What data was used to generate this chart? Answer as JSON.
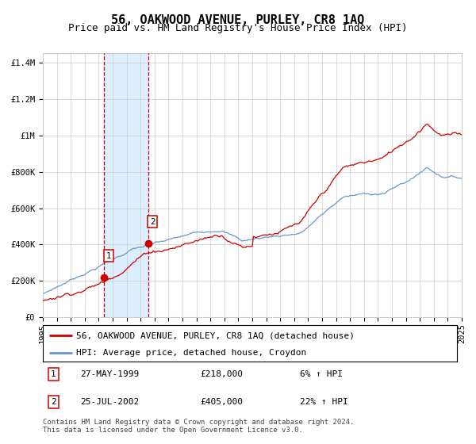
{
  "title": "56, OAKWOOD AVENUE, PURLEY, CR8 1AQ",
  "subtitle": "Price paid vs. HM Land Registry's House Price Index (HPI)",
  "ylim": [
    0,
    1450000
  ],
  "yticks": [
    0,
    200000,
    400000,
    600000,
    800000,
    1000000,
    1200000,
    1400000
  ],
  "ytick_labels": [
    "£0",
    "£200K",
    "£400K",
    "£600K",
    "£800K",
    "£1M",
    "£1.2M",
    "£1.4M"
  ],
  "x_start_year": 1995,
  "x_end_year": 2025,
  "xtick_years": [
    1995,
    1996,
    1997,
    1998,
    1999,
    2000,
    2001,
    2002,
    2003,
    2004,
    2005,
    2006,
    2007,
    2008,
    2009,
    2010,
    2011,
    2012,
    2013,
    2014,
    2015,
    2016,
    2017,
    2018,
    2019,
    2020,
    2021,
    2022,
    2023,
    2024,
    2025
  ],
  "sale1_year": 1999.4,
  "sale1_price": 218000,
  "sale1_label": "1",
  "sale1_date": "27-MAY-1999",
  "sale1_hpi": "6% ↑ HPI",
  "sale2_year": 2002.55,
  "sale2_price": 405000,
  "sale2_label": "2",
  "sale2_date": "25-JUL-2002",
  "sale2_hpi": "22% ↑ HPI",
  "red_line_color": "#cc0000",
  "blue_line_color": "#6699cc",
  "shade_color": "#ddeeff",
  "dashed_color": "#cc0000",
  "grid_color": "#cccccc",
  "background_color": "#ffffff",
  "legend1_label": "56, OAKWOOD AVENUE, PURLEY, CR8 1AQ (detached house)",
  "legend2_label": "HPI: Average price, detached house, Croydon",
  "footer": "Contains HM Land Registry data © Crown copyright and database right 2024.\nThis data is licensed under the Open Government Licence v3.0.",
  "title_fontsize": 11,
  "subtitle_fontsize": 9,
  "axis_fontsize": 7.5,
  "legend_fontsize": 8
}
